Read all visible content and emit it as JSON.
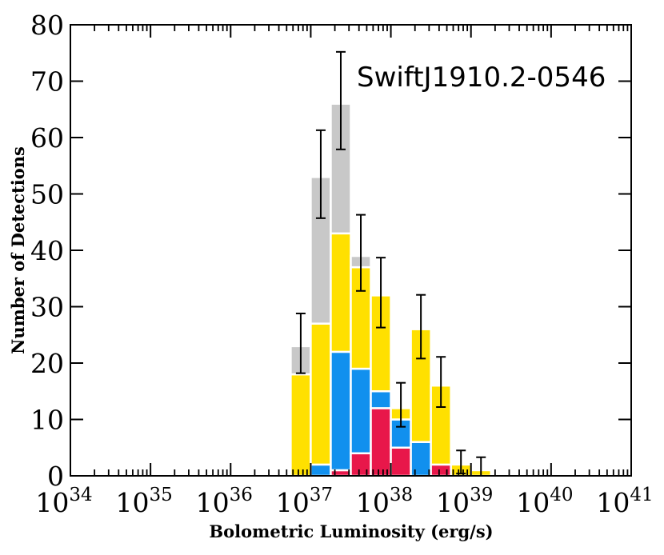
{
  "chart_data": {
    "type": "bar",
    "stacked": true,
    "annotation": "SwiftJ1910.2-0546",
    "xlabel": "Bolometric Luminosity (erg/s)",
    "ylabel": "Number of Detections",
    "x_scale": "log",
    "xlim": [
      1e+34,
      1e+41
    ],
    "ylim": [
      0,
      80
    ],
    "x_ticks": [
      {
        "base": "10",
        "exp": "34",
        "value": 1e+34
      },
      {
        "base": "10",
        "exp": "35",
        "value": 1e+35
      },
      {
        "base": "10",
        "exp": "36",
        "value": 1e+36
      },
      {
        "base": "10",
        "exp": "37",
        "value": 1e+37
      },
      {
        "base": "10",
        "exp": "38",
        "value": 1e+38
      },
      {
        "base": "10",
        "exp": "39",
        "value": 1e+39
      },
      {
        "base": "10",
        "exp": "40",
        "value": 1e+40
      },
      {
        "base": "10",
        "exp": "41",
        "value": 1e+41
      }
    ],
    "y_ticks": [
      "0",
      "10",
      "20",
      "30",
      "40",
      "50",
      "60",
      "70",
      "80"
    ],
    "bin_log_width": 0.25,
    "bin_log_left_edges": [
      36.75,
      37.0,
      37.25,
      37.5,
      37.75,
      38.0,
      38.25,
      38.5,
      38.75,
      39.0
    ],
    "series": [
      {
        "color": "#e8174a",
        "values": [
          0,
          0,
          1,
          4,
          12,
          5,
          0,
          2,
          0,
          0
        ]
      },
      {
        "color": "#1190ee",
        "values": [
          0,
          2,
          21,
          15,
          3,
          5,
          6,
          0,
          0,
          0
        ]
      },
      {
        "color": "#ffe000",
        "values": [
          18,
          25,
          21,
          18,
          17,
          2,
          20,
          14,
          2,
          1
        ]
      },
      {
        "color": "#c8c8c8",
        "values": [
          5,
          26,
          23,
          2,
          0,
          0,
          0,
          0,
          0,
          0
        ]
      }
    ],
    "totals": [
      23,
      53,
      66,
      39,
      32,
      12,
      26,
      16,
      2,
      1
    ],
    "error_bars": [
      {
        "bin": 0,
        "low": 18.2,
        "high": 28.8
      },
      {
        "bin": 1,
        "low": 45.7,
        "high": 61.3
      },
      {
        "bin": 2,
        "low": 57.9,
        "high": 75.2
      },
      {
        "bin": 3,
        "low": 32.8,
        "high": 46.3
      },
      {
        "bin": 4,
        "low": 26.3,
        "high": 38.7
      },
      {
        "bin": 5,
        "low": 8.7,
        "high": 16.5
      },
      {
        "bin": 6,
        "low": 20.8,
        "high": 32.1
      },
      {
        "bin": 7,
        "low": 12.2,
        "high": 21.1
      },
      {
        "bin": 8,
        "low": 0.4,
        "high": 4.5
      },
      {
        "bin": 9,
        "low": 0,
        "high": 3.3
      }
    ],
    "grid": false
  }
}
